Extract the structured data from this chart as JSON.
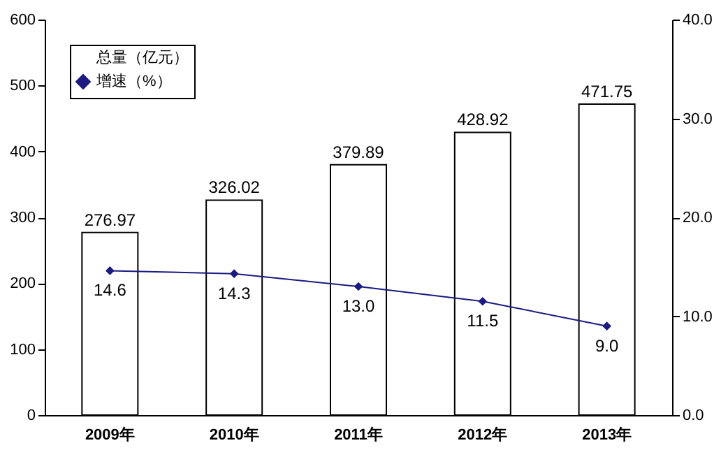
{
  "chart_data": {
    "type": "bar",
    "categories": [
      "2009年",
      "2010年",
      "2011年",
      "2012年",
      "2013年"
    ],
    "series": [
      {
        "name": "总量（亿元）",
        "color": "#ffffff",
        "values": [
          276.97,
          326.02,
          379.89,
          428.92,
          471.75
        ],
        "value_labels": [
          "276.97",
          "326.02",
          "379.89",
          "428.92",
          "471.75"
        ]
      },
      {
        "name": "增速（%）",
        "type": "line",
        "axis": "y2",
        "color": "#1a1a80",
        "values": [
          14.6,
          14.3,
          13.0,
          11.5,
          9.0
        ],
        "value_labels": [
          "14.6",
          "14.3",
          "13.0",
          "11.5",
          "9.0"
        ]
      }
    ],
    "ylim": [
      0,
      600
    ],
    "yticks": [
      0,
      100,
      200,
      300,
      400,
      500,
      600
    ],
    "y2lim": [
      0,
      40
    ],
    "y2ticks": [
      {
        "value": 0,
        "label": "0.0"
      },
      {
        "value": 10,
        "label": "10.0"
      },
      {
        "value": 20,
        "label": "20.0"
      },
      {
        "value": 30,
        "label": "30.0"
      },
      {
        "value": 40,
        "label": "40.0"
      }
    ],
    "grid": false,
    "legend": "top left",
    "marker": "diamond",
    "line_style": "solid"
  }
}
